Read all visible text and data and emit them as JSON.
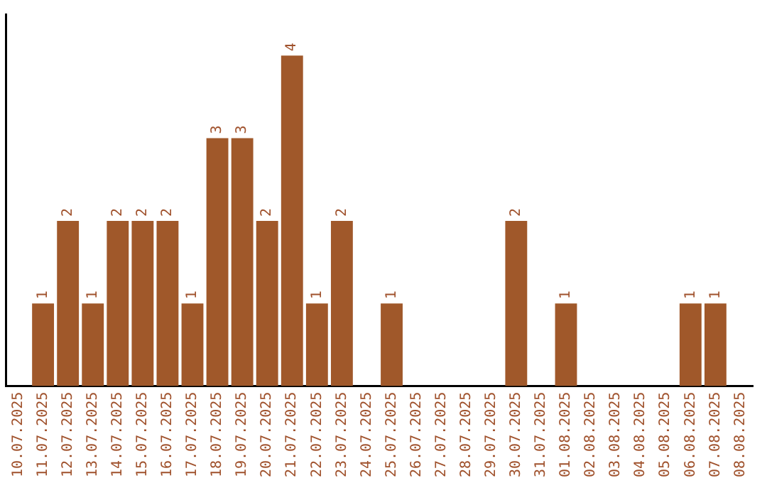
{
  "chart_data": {
    "type": "bar",
    "categories": [
      "10.07.2025",
      "11.07.2025",
      "12.07.2025",
      "13.07.2025",
      "14.07.2025",
      "15.07.2025",
      "16.07.2025",
      "17.07.2025",
      "18.07.2025",
      "19.07.2025",
      "20.07.2025",
      "21.07.2025",
      "22.07.2025",
      "23.07.2025",
      "24.07.2025",
      "25.07.2025",
      "26.07.2025",
      "27.07.2025",
      "28.07.2025",
      "29.07.2025",
      "30.07.2025",
      "31.07.2025",
      "01.08.2025",
      "02.08.2025",
      "03.08.2025",
      "04.08.2025",
      "05.08.2025",
      "06.08.2025",
      "07.08.2025",
      "08.08.2025"
    ],
    "values": [
      0,
      1,
      2,
      1,
      2,
      2,
      2,
      1,
      3,
      3,
      2,
      4,
      1,
      2,
      0,
      1,
      0,
      0,
      0,
      0,
      2,
      0,
      1,
      0,
      0,
      0,
      0,
      1,
      1,
      0
    ],
    "value_labels": [
      null,
      "1",
      "2",
      "1",
      "2",
      "2",
      "2",
      "1",
      "3",
      "3",
      "2",
      "4",
      "1",
      "2",
      null,
      "1",
      null,
      null,
      null,
      null,
      "2",
      null,
      "1",
      null,
      null,
      null,
      null,
      "1",
      "1",
      null
    ],
    "color": "#a0582a",
    "grid": false,
    "legend": false,
    "tick_labels": "x"
  }
}
